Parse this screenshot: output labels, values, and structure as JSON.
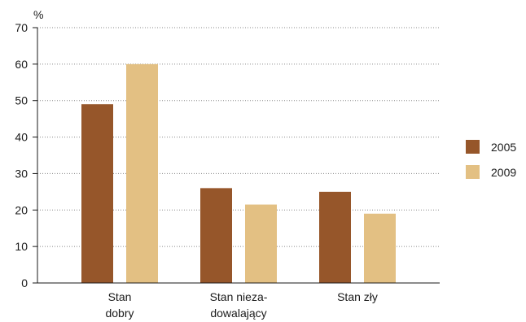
{
  "chart_data": {
    "type": "bar",
    "ylabel": "%",
    "ylim": [
      0,
      70
    ],
    "yticks": [
      0,
      10,
      20,
      30,
      40,
      50,
      60,
      70
    ],
    "grid": true,
    "legend_position": "right",
    "categories": [
      [
        "Stan",
        "dobry"
      ],
      [
        "Stan nieza-",
        "dowalający"
      ],
      [
        "Stan zły"
      ]
    ],
    "series": [
      {
        "name": "2005",
        "color": "#96562a",
        "values": [
          49,
          26,
          25
        ]
      },
      {
        "name": "2009",
        "color": "#e3c083",
        "values": [
          60,
          21.5,
          19
        ]
      }
    ]
  }
}
